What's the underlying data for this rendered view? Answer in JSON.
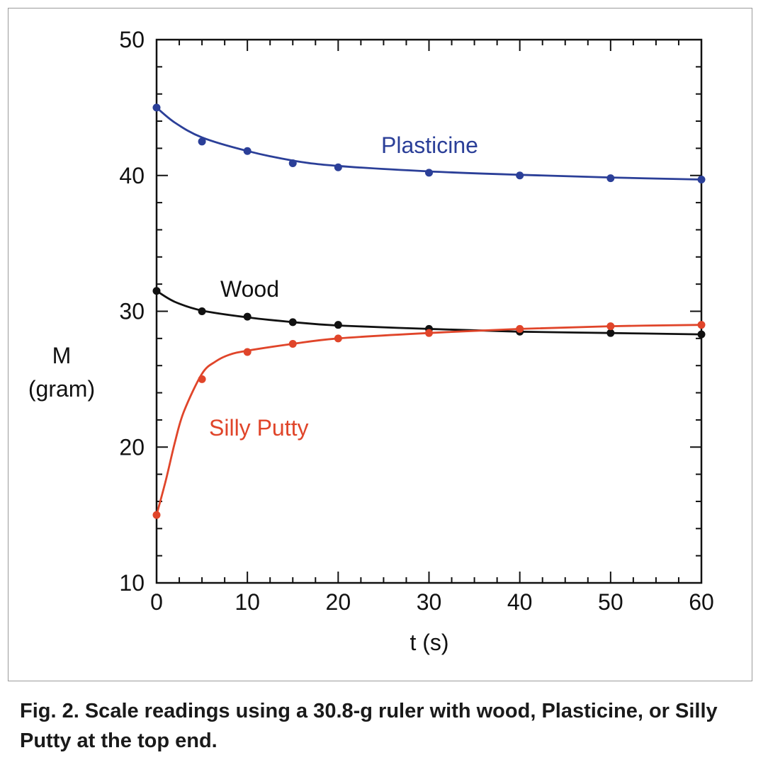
{
  "chart_data": {
    "type": "line",
    "xlabel": "t (s)",
    "ylabel_line1": "M",
    "ylabel_line2": "(gram)",
    "xlim": [
      0,
      60
    ],
    "ylim": [
      10,
      50
    ],
    "x_ticks": [
      0,
      10,
      20,
      30,
      40,
      50,
      60
    ],
    "y_ticks": [
      10,
      20,
      30,
      40,
      50
    ],
    "grid": false,
    "series": [
      {
        "name": "Plasticine",
        "color": "#2b3f98",
        "points": [
          [
            0,
            45.0
          ],
          [
            5,
            42.5
          ],
          [
            10,
            41.8
          ],
          [
            15,
            40.9
          ],
          [
            20,
            40.6
          ],
          [
            30,
            40.2
          ],
          [
            40,
            40.0
          ],
          [
            50,
            39.8
          ],
          [
            60,
            39.7
          ]
        ],
        "curve": [
          [
            0,
            45.0
          ],
          [
            2,
            43.9
          ],
          [
            5,
            42.8
          ],
          [
            10,
            41.8
          ],
          [
            15,
            41.1
          ],
          [
            20,
            40.7
          ],
          [
            30,
            40.3
          ],
          [
            40,
            40.05
          ],
          [
            50,
            39.85
          ],
          [
            60,
            39.7
          ]
        ]
      },
      {
        "name": "Wood",
        "color": "#111111",
        "points": [
          [
            0,
            31.5
          ],
          [
            5,
            30.0
          ],
          [
            10,
            29.6
          ],
          [
            15,
            29.2
          ],
          [
            20,
            29.0
          ],
          [
            30,
            28.7
          ],
          [
            40,
            28.5
          ],
          [
            50,
            28.4
          ],
          [
            60,
            28.3
          ]
        ],
        "curve": [
          [
            0,
            31.5
          ],
          [
            2,
            30.7
          ],
          [
            5,
            30.05
          ],
          [
            10,
            29.55
          ],
          [
            15,
            29.2
          ],
          [
            20,
            28.95
          ],
          [
            30,
            28.7
          ],
          [
            40,
            28.5
          ],
          [
            50,
            28.4
          ],
          [
            60,
            28.3
          ]
        ]
      },
      {
        "name": "Silly Putty",
        "color": "#e0452a",
        "points": [
          [
            0,
            15.0
          ],
          [
            5,
            25.0
          ],
          [
            10,
            27.0
          ],
          [
            15,
            27.6
          ],
          [
            20,
            28.0
          ],
          [
            30,
            28.4
          ],
          [
            40,
            28.7
          ],
          [
            50,
            28.9
          ],
          [
            60,
            29.0
          ]
        ],
        "curve": [
          [
            0,
            15.0
          ],
          [
            1,
            17.5
          ],
          [
            2,
            20.3
          ],
          [
            3,
            22.6
          ],
          [
            5,
            25.4
          ],
          [
            6.5,
            26.3
          ],
          [
            8,
            26.8
          ],
          [
            10,
            27.1
          ],
          [
            15,
            27.6
          ],
          [
            20,
            28.0
          ],
          [
            30,
            28.4
          ],
          [
            40,
            28.7
          ],
          [
            50,
            28.9
          ],
          [
            60,
            29.0
          ]
        ]
      }
    ]
  },
  "caption": "Fig. 2. Scale readings using a 30.8-g ruler with wood, Plasticine, or Silly Putty at the top end."
}
